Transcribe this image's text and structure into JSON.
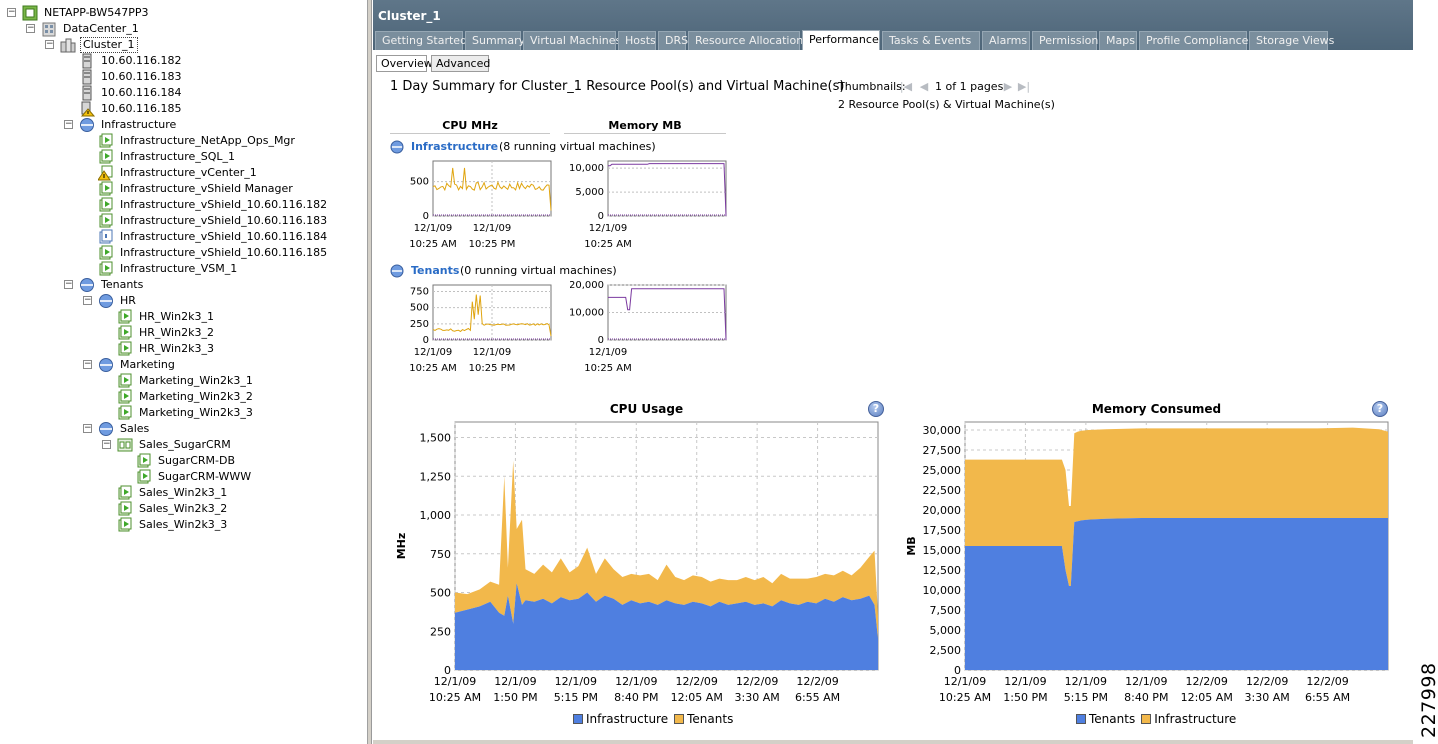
{
  "tree": {
    "root": "NETAPP-BW547PP3",
    "datacenter": "DataCenter_1",
    "cluster": "Cluster_1",
    "hosts": [
      "10.60.116.182",
      "10.60.116.183",
      "10.60.116.184",
      "10.60.116.185"
    ],
    "infrastructure": {
      "label": "Infrastructure",
      "vms": [
        "Infrastructure_NetApp_Ops_Mgr",
        "Infrastructure_SQL_1",
        "Infrastructure_vCenter_1",
        "Infrastructure_vShield Manager",
        "Infrastructure_vShield_10.60.116.182",
        "Infrastructure_vShield_10.60.116.183",
        "Infrastructure_vShield_10.60.116.184",
        "Infrastructure_vShield_10.60.116.185",
        "Infrastructure_VSM_1"
      ]
    },
    "tenants": {
      "label": "Tenants",
      "hr": {
        "label": "HR",
        "vms": [
          "HR_Win2k3_1",
          "HR_Win2k3_2",
          "HR_Win2k3_3"
        ]
      },
      "marketing": {
        "label": "Marketing",
        "vms": [
          "Marketing_Win2k3_1",
          "Marketing_Win2k3_2",
          "Marketing_Win2k3_3"
        ]
      },
      "sales": {
        "label": "Sales",
        "vapp": "Sales_SugarCRM",
        "vapp_vms": [
          "SugarCRM-DB",
          "SugarCRM-WWW"
        ],
        "vms": [
          "Sales_Win2k3_1",
          "Sales_Win2k3_2",
          "Sales_Win2k3_3"
        ]
      }
    }
  },
  "header": {
    "title": "Cluster_1",
    "tabs": [
      "Getting Started",
      "Summary",
      "Virtual Machines",
      "Hosts",
      "DRS",
      "Resource Allocation",
      "Performance",
      "Tasks & Events",
      "Alarms",
      "Permissions",
      "Maps",
      "Profile Compliance",
      "Storage Views"
    ],
    "active_tab": "Performance"
  },
  "subtabs": {
    "overview": "Overview",
    "advanced": "Advanced"
  },
  "summary": {
    "title": "1 Day Summary for Cluster_1 Resource Pool(s) and Virtual Machine(s)",
    "thumbnails_label": "Thumbnails:",
    "pages": "1 of 1 pages",
    "pool_count": "2 Resource Pool(s) & Virtual Machine(s)",
    "col_cpu": "CPU MHz",
    "col_mem": "Memory MB"
  },
  "pools": [
    {
      "name": "Infrastructure",
      "desc": "(8 running virtual machines)",
      "cpu_ticks": [
        "500",
        "0"
      ],
      "cpu_ylim": [
        0,
        800
      ],
      "mem_ticks": [
        "10,000",
        "5,000",
        "0"
      ],
      "mem_ylim": [
        0,
        11500
      ],
      "cpu_x": [
        [
          "12/1/09",
          "10:25 AM"
        ],
        [
          "12/1/09",
          "10:25 PM"
        ]
      ],
      "mem_x": [
        [
          "12/1/09",
          "10:25 AM"
        ]
      ]
    },
    {
      "name": "Tenants",
      "desc": "(0 running virtual machines)",
      "cpu_ticks": [
        "750",
        "500",
        "250",
        "0"
      ],
      "cpu_ylim": [
        0,
        850
      ],
      "mem_ticks": [
        "20,000",
        "10,000",
        "0"
      ],
      "mem_ylim": [
        0,
        20000
      ],
      "cpu_x": [
        [
          "12/1/09",
          "10:25 AM"
        ],
        [
          "12/1/09",
          "10:25 PM"
        ]
      ],
      "mem_x": [
        [
          "12/1/09",
          "10:25 AM"
        ]
      ]
    }
  ],
  "chart_data": [
    {
      "type": "area",
      "title": "CPU Usage",
      "ylabel": "MHz",
      "ylim": [
        0,
        1600
      ],
      "yticks": [
        0,
        250,
        500,
        750,
        1000,
        1250,
        1500
      ],
      "yticklabels": [
        "0",
        "250",
        "500",
        "750",
        "1,000",
        "1,250",
        "1,500"
      ],
      "xticklabels": [
        [
          "12/1/09",
          "10:25 AM"
        ],
        [
          "12/1/09",
          "1:50 PM"
        ],
        [
          "12/1/09",
          "5:15 PM"
        ],
        [
          "12/1/09",
          "8:40 PM"
        ],
        [
          "12/2/09",
          "12:05 AM"
        ],
        [
          "12/2/09",
          "3:30 AM"
        ],
        [
          "12/2/09",
          "6:55 AM"
        ]
      ],
      "stacked": true,
      "grid": true,
      "x": [
        0,
        0.7,
        1.4,
        2,
        2.5,
        2.8,
        3,
        3.3,
        3.5,
        3.8,
        4,
        4.5,
        5,
        5.5,
        6,
        6.5,
        7,
        7.5,
        8,
        8.5,
        9,
        9.5,
        10,
        10.5,
        11,
        11.5,
        12,
        12.5,
        13,
        13.5,
        14,
        14.5,
        15,
        15.5,
        16,
        16.5,
        17,
        17.5,
        18,
        18.5,
        19,
        19.5,
        20,
        20.5,
        21,
        21.5,
        22,
        22.5,
        23,
        23.5,
        23.8,
        24
      ],
      "series": [
        {
          "name": "Infrastructure",
          "color": "#4f7fe0",
          "values": [
            370,
            390,
            410,
            440,
            370,
            350,
            480,
            300,
            560,
            420,
            450,
            440,
            460,
            430,
            470,
            450,
            460,
            500,
            440,
            480,
            460,
            420,
            450,
            430,
            440,
            420,
            450,
            430,
            420,
            440,
            430,
            410,
            440,
            420,
            430,
            440,
            420,
            430,
            410,
            450,
            430,
            420,
            440,
            430,
            460,
            440,
            470,
            450,
            460,
            480,
            420,
            200
          ]
        },
        {
          "name": "Tenants",
          "color": "#f2b84b",
          "values": [
            130,
            100,
            110,
            130,
            180,
            900,
            180,
            1050,
            350,
            550,
            200,
            180,
            220,
            200,
            250,
            180,
            210,
            290,
            180,
            240,
            190,
            180,
            170,
            180,
            180,
            160,
            230,
            170,
            160,
            170,
            170,
            160,
            150,
            160,
            150,
            160,
            160,
            170,
            150,
            170,
            160,
            170,
            150,
            170,
            160,
            170,
            170,
            160,
            200,
            250,
            350,
            150
          ]
        }
      ],
      "legend": [
        "Infrastructure",
        "Tenants"
      ]
    },
    {
      "type": "area",
      "title": "Memory Consumed",
      "ylabel": "MB",
      "ylim": [
        0,
        31000
      ],
      "yticks": [
        0,
        2500,
        5000,
        7500,
        10000,
        12500,
        15000,
        17500,
        20000,
        22500,
        25000,
        27500,
        30000
      ],
      "yticklabels": [
        "0",
        "2,500",
        "5,000",
        "7,500",
        "10,000",
        "12,500",
        "15,000",
        "17,500",
        "20,000",
        "22,500",
        "25,000",
        "27,500",
        "30,000"
      ],
      "xticklabels": [
        [
          "12/1/09",
          "10:25 AM"
        ],
        [
          "12/1/09",
          "1:50 PM"
        ],
        [
          "12/1/09",
          "5:15 PM"
        ],
        [
          "12/1/09",
          "8:40 PM"
        ],
        [
          "12/2/09",
          "12:05 AM"
        ],
        [
          "12/2/09",
          "3:30 AM"
        ],
        [
          "12/2/09",
          "6:55 AM"
        ]
      ],
      "stacked": true,
      "grid": true,
      "x": [
        0,
        2,
        4,
        5.5,
        5.7,
        5.9,
        6.0,
        6.2,
        6.4,
        6.6,
        7,
        8,
        10,
        12,
        14,
        16,
        18,
        20,
        22,
        23.5,
        24
      ],
      "series": [
        {
          "name": "Tenants",
          "color": "#4f7fe0",
          "values": [
            15500,
            15500,
            15500,
            15500,
            12500,
            10500,
            10500,
            18500,
            18600,
            18700,
            18800,
            18900,
            19000,
            19000,
            19000,
            19000,
            19000,
            19000,
            19000,
            19000,
            19000
          ]
        },
        {
          "name": "Infrastructure",
          "color": "#f2b84b",
          "values": [
            10800,
            10800,
            10800,
            10800,
            12500,
            10000,
            10000,
            11100,
            11200,
            11200,
            11200,
            11200,
            11200,
            11200,
            11200,
            11200,
            11200,
            11200,
            11300,
            11100,
            10800
          ]
        }
      ],
      "legend": [
        "Tenants",
        "Infrastructure"
      ]
    }
  ],
  "figure_id": "227998"
}
